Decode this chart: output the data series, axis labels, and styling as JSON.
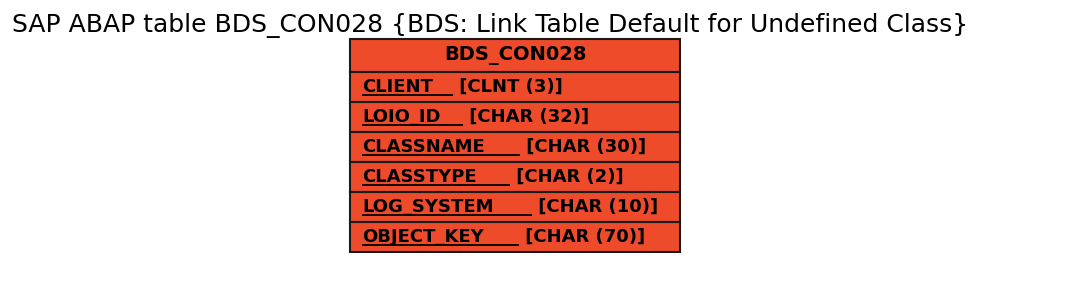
{
  "title": "SAP ABAP table BDS_CON028 {BDS: Link Table Default for Undefined Class}",
  "table_name": "BDS_CON028",
  "fields": [
    {
      "underlined": "CLIENT",
      "rest": " [CLNT (3)]"
    },
    {
      "underlined": "LOIO_ID",
      "rest": " [CHAR (32)]"
    },
    {
      "underlined": "CLASSNAME",
      "rest": " [CHAR (30)]"
    },
    {
      "underlined": "CLASSTYPE",
      "rest": " [CHAR (2)]"
    },
    {
      "underlined": "LOG_SYSTEM",
      "rest": " [CHAR (10)]"
    },
    {
      "underlined": "OBJECT_KEY",
      "rest": " [CHAR (70)]"
    }
  ],
  "box_fill_color": "#EE4B2B",
  "box_edge_color": "#1a1a1a",
  "header_text_color": "#000000",
  "field_text_color": "#000000",
  "title_fontsize": 18,
  "header_fontsize": 14,
  "field_fontsize": 13,
  "bg_color": "#ffffff"
}
